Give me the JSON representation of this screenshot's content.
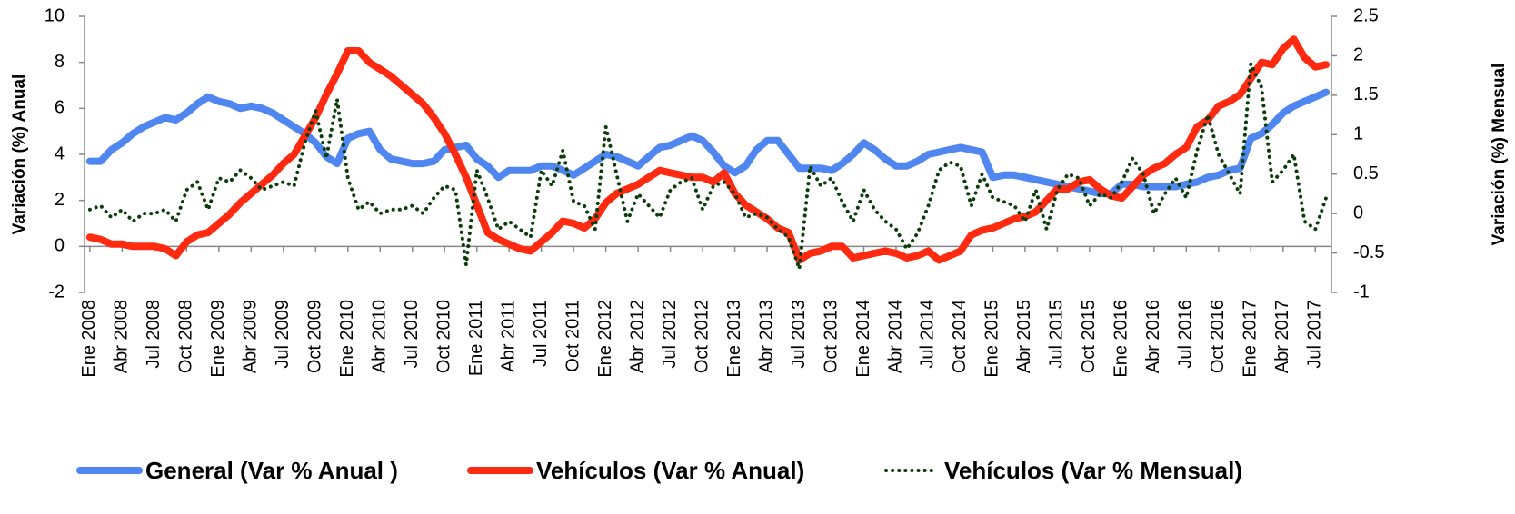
{
  "chart_data": {
    "type": "line",
    "ylabel": "Variación (%) Anual",
    "y2label": "Variación (%) Mensual",
    "categories": [
      "Ene 2008",
      null,
      null,
      "Abr 2008",
      null,
      null,
      "Jul 2008",
      null,
      null,
      "Oct 2008",
      null,
      null,
      "Ene 2009",
      null,
      null,
      "Abr 2009",
      null,
      null,
      "Jul 2009",
      null,
      null,
      "Oct 2009",
      null,
      null,
      "Ene 2010",
      null,
      null,
      "Abr 2010",
      null,
      null,
      "Jul 2010",
      null,
      null,
      "Oct 2010",
      null,
      null,
      "Ene 2011",
      null,
      null,
      "Abr 2011",
      null,
      null,
      "Jul 2011",
      null,
      null,
      "Oct 2011",
      null,
      null,
      "Ene 2012",
      null,
      null,
      "Abr 2012",
      null,
      null,
      "Jul 2012",
      null,
      null,
      "Oct 2012",
      null,
      null,
      "Ene 2013",
      null,
      null,
      "Abr 2013",
      null,
      null,
      "Jul 2013",
      null,
      null,
      "Oct 2013",
      null,
      null,
      "Ene 2014",
      null,
      null,
      "Abr 2014",
      null,
      null,
      "Jul 2014",
      null,
      null,
      "Oct 2014",
      null,
      null,
      "Ene 2015",
      null,
      null,
      "Abr 2015",
      null,
      null,
      "Jul 2015",
      null,
      null,
      "Oct 2015",
      null,
      null,
      "Ene 2016",
      null,
      null,
      "Abr 2016",
      null,
      null,
      "Jul 2016",
      null,
      null,
      "Oct 2016",
      null,
      null,
      "Ene 2017",
      null,
      null,
      "Abr 2017",
      null,
      null,
      "Jul 2017",
      null
    ],
    "series": [
      {
        "name": "General (Var % Anual )",
        "color": "#4f86f0",
        "axis": "y",
        "values": [
          3.7,
          3.7,
          4.2,
          4.5,
          4.9,
          5.2,
          5.4,
          5.6,
          5.5,
          5.8,
          6.2,
          6.5,
          6.3,
          6.2,
          6.0,
          6.1,
          6.0,
          5.8,
          5.5,
          5.2,
          4.9,
          4.5,
          3.9,
          3.6,
          4.7,
          4.9,
          5.0,
          4.2,
          3.8,
          3.7,
          3.6,
          3.6,
          3.7,
          4.2,
          4.3,
          4.4,
          3.8,
          3.5,
          3.0,
          3.3,
          3.3,
          3.3,
          3.5,
          3.5,
          3.3,
          3.1,
          3.4,
          3.7,
          4.0,
          3.9,
          3.7,
          3.5,
          3.9,
          4.3,
          4.4,
          4.6,
          4.8,
          4.6,
          4.1,
          3.5,
          3.2,
          3.5,
          4.2,
          4.6,
          4.6,
          4.0,
          3.4,
          3.4,
          3.4,
          3.3,
          3.6,
          4.0,
          4.5,
          4.2,
          3.8,
          3.5,
          3.5,
          3.7,
          4.0,
          4.1,
          4.2,
          4.3,
          4.2,
          4.1,
          3.0,
          3.1,
          3.1,
          3.0,
          2.9,
          2.8,
          2.7,
          2.6,
          2.5,
          2.4,
          2.3,
          2.3,
          2.7,
          2.7,
          2.6,
          2.6,
          2.6,
          2.6,
          2.7,
          2.8,
          3.0,
          3.1,
          3.3,
          3.4,
          4.7,
          4.9,
          5.3,
          5.8,
          6.1,
          6.3,
          6.5,
          6.7
        ]
      },
      {
        "name": "Vehículos (Var % Anual)",
        "color": "#ff2a10",
        "axis": "y",
        "values": [
          0.4,
          0.3,
          0.1,
          0.1,
          0.0,
          0.0,
          0.0,
          -0.1,
          -0.4,
          0.2,
          0.5,
          0.6,
          1.0,
          1.4,
          1.9,
          2.3,
          2.7,
          3.1,
          3.6,
          4.0,
          4.8,
          5.6,
          6.6,
          7.5,
          8.5,
          8.5,
          8.0,
          7.7,
          7.4,
          7.0,
          6.6,
          6.2,
          5.6,
          4.9,
          4.0,
          3.0,
          1.8,
          0.6,
          0.3,
          0.1,
          -0.1,
          -0.2,
          0.2,
          0.6,
          1.1,
          1.0,
          0.8,
          1.2,
          1.9,
          2.3,
          2.5,
          2.7,
          3.0,
          3.3,
          3.2,
          3.1,
          3.0,
          3.0,
          2.8,
          3.2,
          2.3,
          1.8,
          1.5,
          1.2,
          0.8,
          0.6,
          -0.6,
          -0.3,
          -0.2,
          0.0,
          0.0,
          -0.5,
          -0.4,
          -0.3,
          -0.2,
          -0.3,
          -0.5,
          -0.4,
          -0.2,
          -0.6,
          -0.4,
          -0.2,
          0.5,
          0.7,
          0.8,
          1.0,
          1.2,
          1.3,
          1.5,
          2.0,
          2.5,
          2.5,
          2.8,
          2.9,
          2.5,
          2.2,
          2.1,
          2.6,
          3.1,
          3.4,
          3.6,
          4.0,
          4.3,
          5.2,
          5.5,
          6.1,
          6.3,
          6.6,
          7.3,
          8.0,
          7.9,
          8.6,
          9.0,
          8.2,
          7.8,
          7.9
        ]
      },
      {
        "name": "Vehículos (Var % Mensual)",
        "color": "#0b3d0b",
        "axis": "y2",
        "dash": "dotted",
        "values": [
          0.05,
          0.1,
          -0.05,
          0.05,
          -0.1,
          0.0,
          0.0,
          0.05,
          -0.1,
          0.3,
          0.4,
          0.05,
          0.45,
          0.4,
          0.55,
          0.45,
          0.3,
          0.35,
          0.4,
          0.35,
          0.9,
          1.3,
          0.7,
          1.45,
          0.45,
          0.05,
          0.15,
          0.0,
          0.05,
          0.05,
          0.1,
          0.0,
          0.2,
          0.35,
          0.3,
          -0.65,
          0.55,
          0.2,
          -0.2,
          -0.1,
          -0.2,
          -0.3,
          0.55,
          0.35,
          0.8,
          0.15,
          0.1,
          -0.2,
          1.1,
          0.5,
          -0.1,
          0.25,
          0.1,
          -0.05,
          0.3,
          0.4,
          0.45,
          0.05,
          0.35,
          0.4,
          0.25,
          -0.05,
          0.0,
          -0.05,
          -0.2,
          -0.3,
          -0.7,
          0.6,
          0.35,
          0.45,
          0.15,
          -0.1,
          0.3,
          0.05,
          -0.1,
          -0.2,
          -0.45,
          -0.25,
          0.1,
          0.55,
          0.65,
          0.6,
          0.1,
          0.5,
          0.2,
          0.15,
          0.1,
          -0.1,
          0.3,
          -0.2,
          0.3,
          0.5,
          0.45,
          0.1,
          0.25,
          0.2,
          0.4,
          0.7,
          0.5,
          0.0,
          0.25,
          0.45,
          0.2,
          0.8,
          1.25,
          0.75,
          0.5,
          0.25,
          1.9,
          1.6,
          0.4,
          0.55,
          0.75,
          -0.1,
          -0.2,
          0.2
        ]
      }
    ],
    "ylim": [
      -2,
      10
    ],
    "yticks": [
      -2,
      0,
      2,
      4,
      6,
      8,
      10
    ],
    "y2lim": [
      -1,
      2.5
    ],
    "y2ticks": [
      -1,
      -0.5,
      0,
      0.5,
      1,
      1.5,
      2,
      2.5
    ]
  }
}
